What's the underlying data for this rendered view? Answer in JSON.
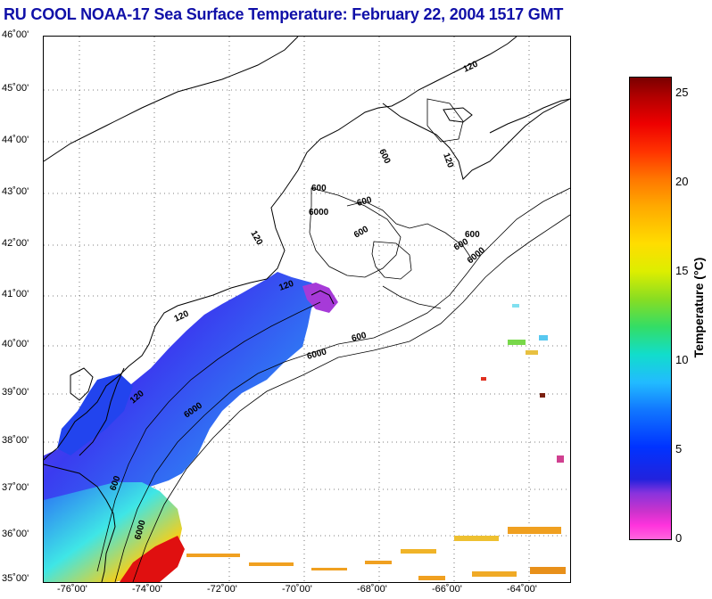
{
  "title": "RU COOL  NOAA-17  Sea Surface Temperature:  February 22, 2004 1517 GMT",
  "latitude_labels": [
    "46˚00'",
    "45˚00'",
    "44˚00'",
    "43˚00'",
    "42˚00'",
    "41˚00'",
    "40˚00'",
    "39˚00'",
    "38˚00'",
    "37˚00'",
    "36˚00'",
    "35˚00'"
  ],
  "longitude_labels": [
    "-76˚00'",
    "-74˚00'",
    "-72˚00'",
    "-70˚00'",
    "-68˚00'",
    "-66˚00'",
    "-64˚00'"
  ],
  "contour_labels": [
    "120",
    "600",
    "6000"
  ],
  "colorbar": {
    "label": "Temperature (°C)",
    "ticks": [
      "0",
      "5",
      "10",
      "15",
      "20",
      "25"
    ],
    "min": 0,
    "max": 26
  }
}
